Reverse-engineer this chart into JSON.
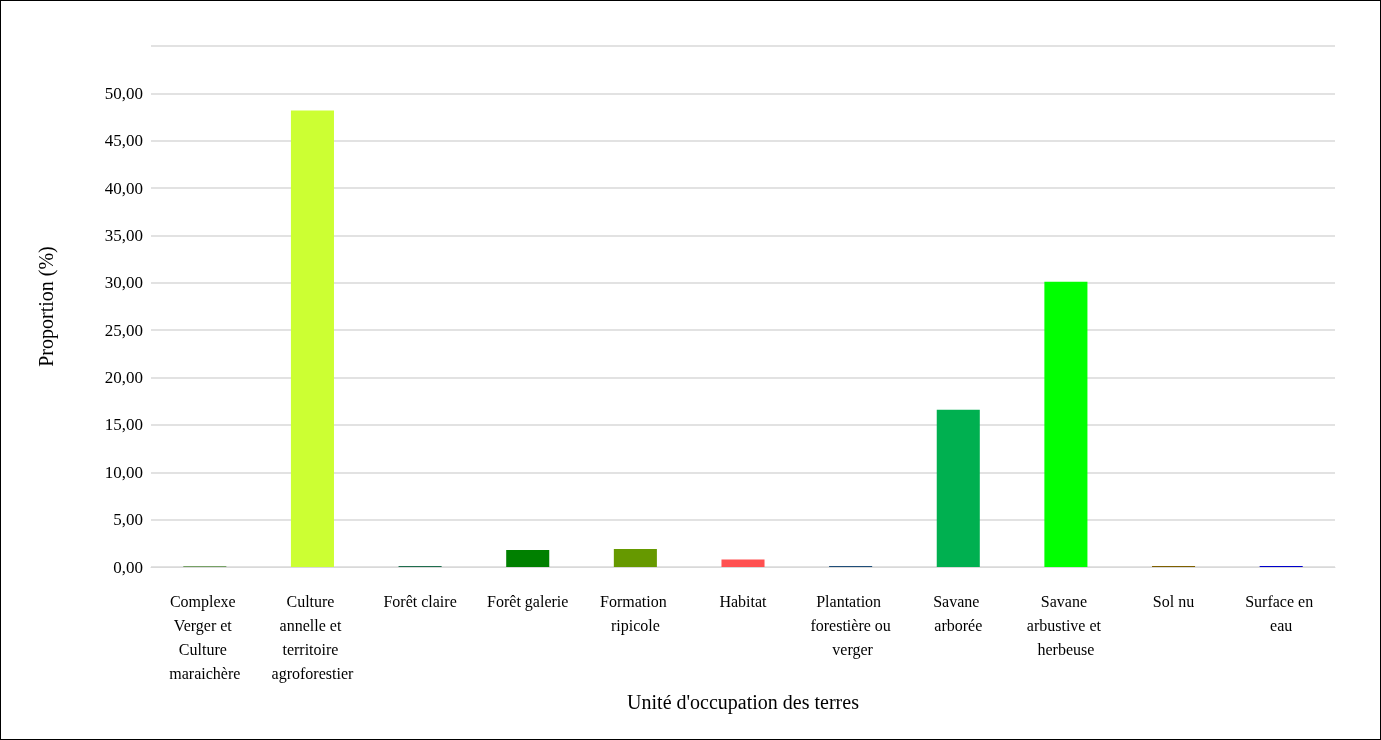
{
  "chart_data": {
    "type": "bar",
    "xlabel": "Unité d'occupation des terres",
    "ylabel": "Proportion (%)",
    "categories": [
      "Complexe Verger et Culture maraichère",
      "Culture annelle et territoire agroforestier",
      "Forêt claire",
      "Forêt galerie",
      "Formation ripicole",
      "Habitat",
      "Plantation forestière ou verger",
      "Savane arborée",
      "Savane arbustive et herbeuse",
      "Sol nu",
      "Surface en eau"
    ],
    "values": [
      0.1,
      48.2,
      0.1,
      1.8,
      1.9,
      0.8,
      0.1,
      16.6,
      30.1,
      0.1,
      0.1
    ],
    "colors": [
      "#76a165",
      "#ccff33",
      "#1f6e4e",
      "#008000",
      "#669900",
      "#ff5050",
      "#1f4e79",
      "#00b050",
      "#00ff00",
      "#7f6000",
      "#0000cc"
    ],
    "ylim": [
      0,
      55
    ],
    "yticks": [
      {
        "value": 0,
        "label": "0,00"
      },
      {
        "value": 5,
        "label": "5,00"
      },
      {
        "value": 10,
        "label": "10,00"
      },
      {
        "value": 15,
        "label": "15,00"
      },
      {
        "value": 20,
        "label": "20,00"
      },
      {
        "value": 25,
        "label": "25,00"
      },
      {
        "value": 30,
        "label": "30,00"
      },
      {
        "value": 35,
        "label": "35,00"
      },
      {
        "value": 40,
        "label": "40,00"
      },
      {
        "value": 45,
        "label": "45,00"
      },
      {
        "value": 50,
        "label": "50,00"
      },
      {
        "value": 55,
        "label": null
      }
    ],
    "grid": true
  }
}
